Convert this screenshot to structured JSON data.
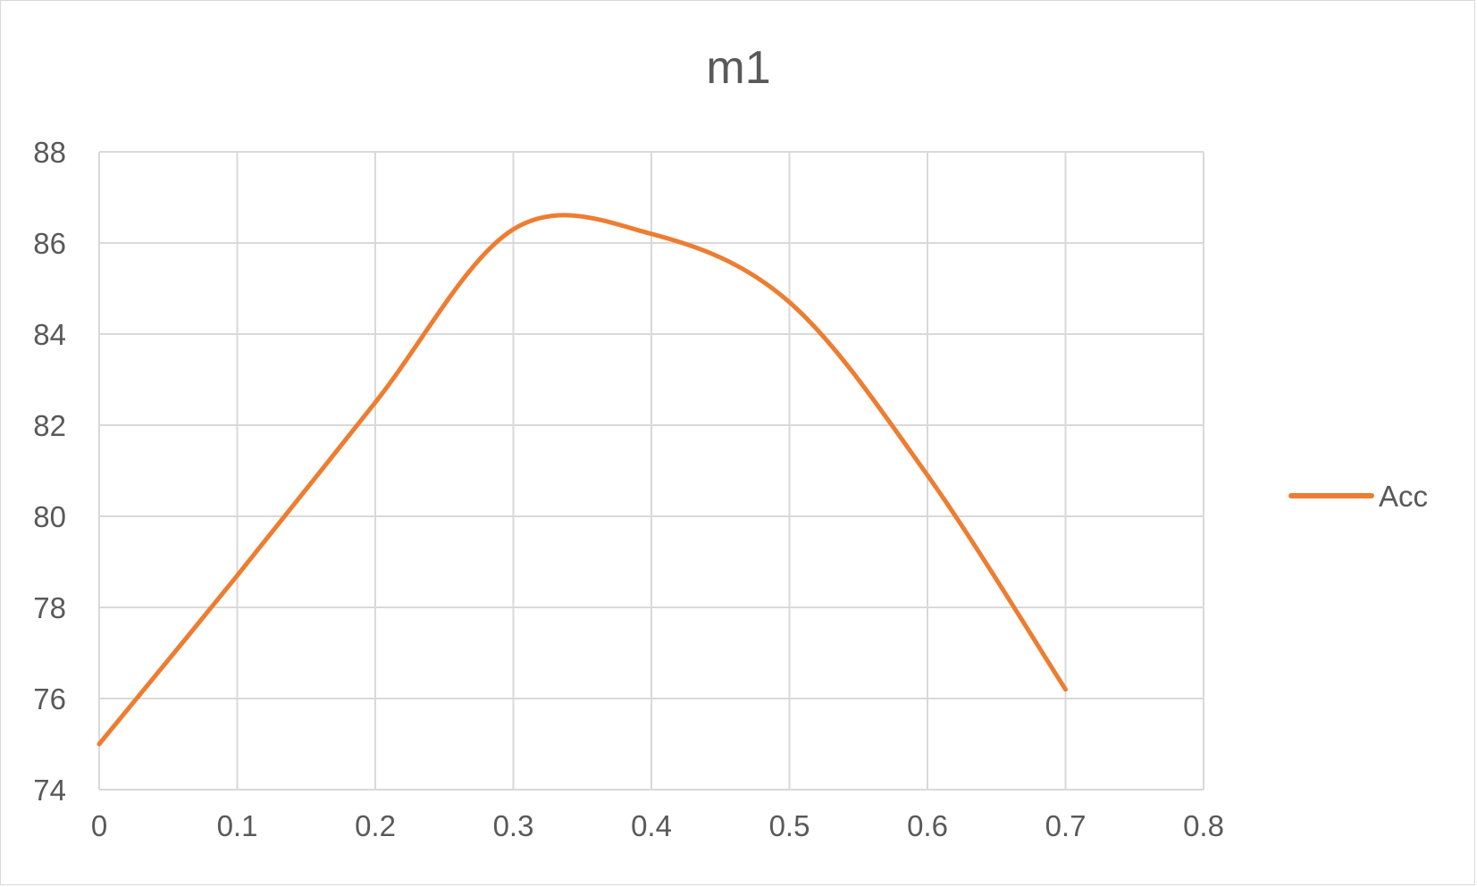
{
  "chart_data": {
    "type": "line",
    "title": "m1",
    "xlabel": "",
    "ylabel": "",
    "xlim": [
      0,
      0.8
    ],
    "ylim": [
      74,
      88
    ],
    "x_ticks": [
      "0",
      "0.1",
      "0.2",
      "0.3",
      "0.4",
      "0.5",
      "0.6",
      "0.7",
      "0.8"
    ],
    "y_ticks": [
      "74",
      "76",
      "78",
      "80",
      "82",
      "84",
      "86",
      "88"
    ],
    "grid": true,
    "smooth": true,
    "legend_position": "right",
    "series": [
      {
        "name": "Acc",
        "color": "#ed7d31",
        "x": [
          0,
          0.1,
          0.2,
          0.3,
          0.4,
          0.5,
          0.6,
          0.7
        ],
        "y": [
          75.0,
          78.7,
          82.5,
          86.3,
          86.2,
          84.7,
          80.9,
          76.2
        ]
      }
    ]
  }
}
